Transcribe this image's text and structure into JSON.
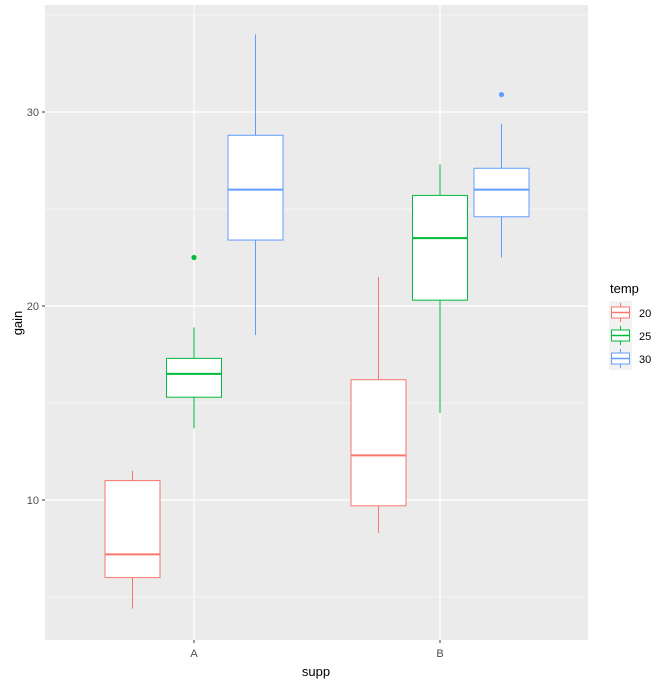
{
  "chart_data": {
    "type": "boxplot",
    "xlabel": "supp",
    "ylabel": "gain",
    "categories": [
      "A",
      "B"
    ],
    "ylim": [
      3,
      36
    ],
    "y_ticks": [
      10,
      20,
      30
    ],
    "y_tick_labels": [
      "10",
      "20",
      "30"
    ],
    "grid": true,
    "legend": {
      "title": "temp",
      "position": "right",
      "entries": [
        "20",
        "25",
        "30"
      ]
    },
    "series": [
      {
        "name": "20",
        "color": "#F8766D",
        "boxes": [
          {
            "category": "A",
            "lower_whisker": 4.4,
            "q1": 6.0,
            "median": 7.2,
            "q3": 11.0,
            "upper_whisker": 11.5,
            "outliers": []
          },
          {
            "category": "B",
            "lower_whisker": 8.3,
            "q1": 9.7,
            "median": 12.3,
            "q3": 16.2,
            "upper_whisker": 21.5,
            "outliers": []
          }
        ]
      },
      {
        "name": "25",
        "color": "#00BA38",
        "boxes": [
          {
            "category": "A",
            "lower_whisker": 13.7,
            "q1": 15.3,
            "median": 16.5,
            "q3": 17.3,
            "upper_whisker": 18.9,
            "outliers": [
              22.5
            ]
          },
          {
            "category": "B",
            "lower_whisker": 14.5,
            "q1": 20.3,
            "median": 23.5,
            "q3": 25.7,
            "upper_whisker": 27.3,
            "outliers": []
          }
        ]
      },
      {
        "name": "30",
        "color": "#619CFF",
        "boxes": [
          {
            "category": "A",
            "lower_whisker": 18.5,
            "q1": 23.4,
            "median": 26.0,
            "q3": 28.8,
            "upper_whisker": 34.0,
            "outliers": []
          },
          {
            "category": "B",
            "lower_whisker": 22.5,
            "q1": 24.6,
            "median": 26.0,
            "q3": 27.1,
            "upper_whisker": 29.4,
            "outliers": [
              30.9
            ]
          }
        ]
      }
    ]
  }
}
